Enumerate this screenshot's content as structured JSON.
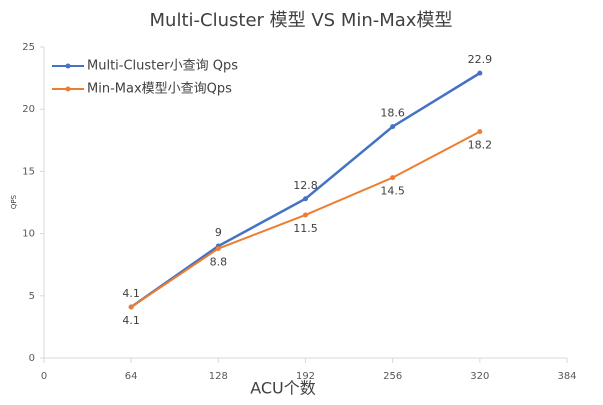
{
  "chart_data": {
    "type": "line",
    "title": "Multi-Cluster 模型 VS Min-Max模型",
    "x_label": "ACU个数",
    "y_label": "QPS",
    "x": [
      64,
      128,
      192,
      256,
      320
    ],
    "series": [
      {
        "name": "Multi-Cluster小查询 Qps",
        "color": "#4472c4",
        "values": [
          4.1,
          9,
          12.8,
          18.6,
          22.9
        ]
      },
      {
        "name": "Min-Max模型小查询Qps",
        "color": "#ed7d31",
        "values": [
          4.1,
          8.8,
          11.5,
          14.5,
          18.2
        ]
      }
    ],
    "xlim": [
      0,
      384
    ],
    "xticks": [
      0,
      64,
      128,
      192,
      256,
      320,
      384
    ],
    "ylim": [
      0,
      25
    ],
    "yticks": [
      0,
      5,
      10,
      15,
      20,
      25
    ],
    "legend": "top-left"
  }
}
